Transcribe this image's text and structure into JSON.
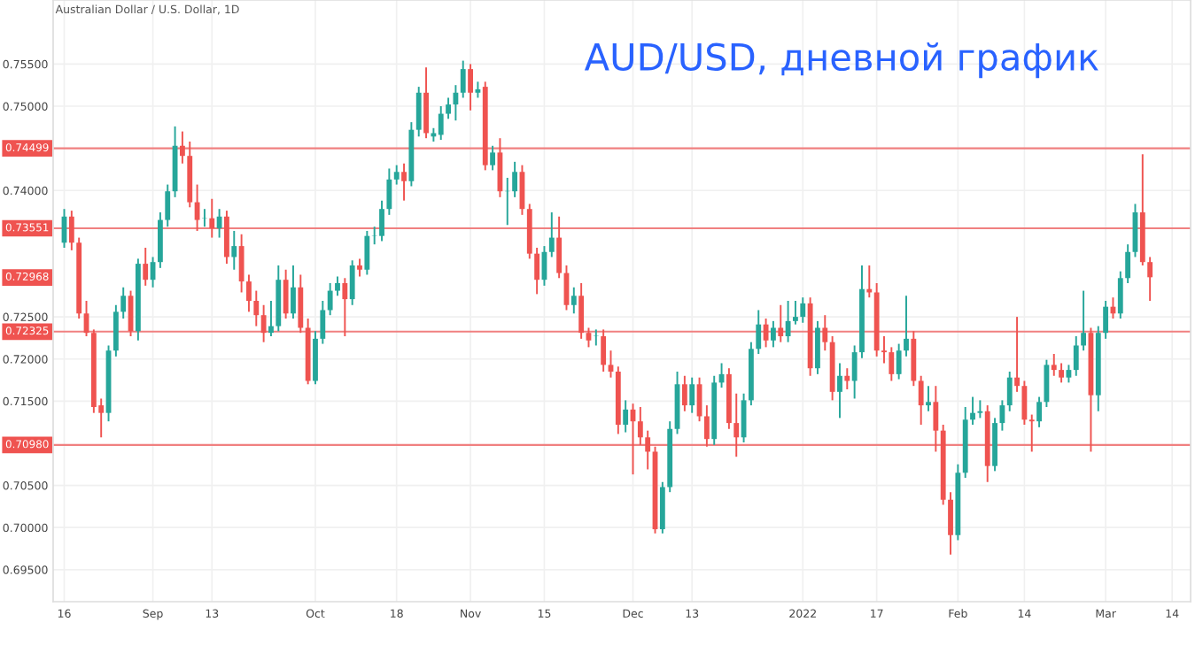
{
  "chart_data": {
    "type": "candlestick",
    "title": "AUD/USD, дневной график",
    "subtitle": "Australian Dollar / U.S. Dollar, 1D",
    "categories": [
      "16",
      null,
      null,
      null,
      null,
      null,
      null,
      null,
      null,
      null,
      null,
      null,
      "Sep",
      null,
      null,
      null,
      null,
      null,
      null,
      null,
      "13",
      null,
      null,
      null,
      null,
      null,
      null,
      null,
      null,
      null,
      null,
      null,
      null,
      null,
      "Oct",
      null,
      null,
      null,
      null,
      null,
      null,
      null,
      null,
      null,
      null,
      "18",
      null,
      null,
      null,
      null,
      null,
      null,
      null,
      null,
      null,
      "Nov",
      null,
      null,
      null,
      null,
      null,
      null,
      null,
      null,
      null,
      "15",
      null,
      null,
      null,
      null,
      null,
      null,
      null,
      null,
      null,
      null,
      null,
      "Dec",
      null,
      null,
      null,
      null,
      null,
      null,
      null,
      "13",
      null,
      null,
      null,
      null,
      null,
      null,
      null,
      null,
      null,
      null,
      null,
      null,
      null,
      null,
      "2022",
      null,
      null,
      null,
      null,
      null,
      null,
      null,
      null,
      null,
      "17",
      null,
      null,
      null,
      null,
      null,
      null,
      null,
      null,
      null,
      null,
      "Feb",
      null,
      null,
      null,
      null,
      null,
      null,
      null,
      null,
      "14",
      null,
      null,
      null,
      null,
      null,
      null,
      null,
      null,
      null,
      null,
      "Mar",
      null,
      null,
      null,
      null,
      null,
      null,
      null,
      null,
      "14"
    ],
    "ohlc": [
      [
        0.7338,
        0.7378,
        0.7332,
        0.7369
      ],
      [
        0.7369,
        0.7376,
        0.7329,
        0.7338
      ],
      [
        0.7338,
        0.7344,
        0.7248,
        0.7254
      ],
      [
        0.7254,
        0.7269,
        0.7227,
        0.7231
      ],
      [
        0.7231,
        0.7235,
        0.7136,
        0.7143
      ],
      [
        0.7145,
        0.7153,
        0.7107,
        0.7136
      ],
      [
        0.7136,
        0.7216,
        0.7126,
        0.721
      ],
      [
        0.721,
        0.7264,
        0.7203,
        0.7256
      ],
      [
        0.7256,
        0.7285,
        0.7248,
        0.7275
      ],
      [
        0.7275,
        0.7281,
        0.7227,
        0.7233
      ],
      [
        0.7233,
        0.7319,
        0.7222,
        0.7313
      ],
      [
        0.7313,
        0.7332,
        0.7287,
        0.7294
      ],
      [
        0.7294,
        0.7321,
        0.7285,
        0.7315
      ],
      [
        0.7315,
        0.7374,
        0.7308,
        0.7365
      ],
      [
        0.7365,
        0.7407,
        0.7357,
        0.7399
      ],
      [
        0.7399,
        0.7476,
        0.7392,
        0.7453
      ],
      [
        0.7453,
        0.747,
        0.7432,
        0.7441
      ],
      [
        0.7441,
        0.7458,
        0.738,
        0.7386
      ],
      [
        0.7386,
        0.7407,
        0.7352,
        0.7365
      ],
      [
        0.7367,
        0.7378,
        0.7357,
        0.7367
      ],
      [
        0.7367,
        0.739,
        0.7344,
        0.7355
      ],
      [
        0.7355,
        0.7378,
        0.7344,
        0.7369
      ],
      [
        0.7369,
        0.7376,
        0.7313,
        0.7321
      ],
      [
        0.7321,
        0.7352,
        0.7306,
        0.7334
      ],
      [
        0.7334,
        0.7348,
        0.7279,
        0.7292
      ],
      [
        0.7292,
        0.73,
        0.7256,
        0.7269
      ],
      [
        0.7269,
        0.7281,
        0.7239,
        0.7252
      ],
      [
        0.7252,
        0.7264,
        0.722,
        0.7231
      ],
      [
        0.7231,
        0.7269,
        0.7227,
        0.7239
      ],
      [
        0.7239,
        0.7311,
        0.7233,
        0.7294
      ],
      [
        0.7294,
        0.7306,
        0.7248,
        0.7254
      ],
      [
        0.7254,
        0.7311,
        0.7248,
        0.7285
      ],
      [
        0.7285,
        0.73,
        0.7231,
        0.7237
      ],
      [
        0.7237,
        0.7248,
        0.717,
        0.7174
      ],
      [
        0.7174,
        0.7233,
        0.717,
        0.7224
      ],
      [
        0.7224,
        0.7269,
        0.7218,
        0.7258
      ],
      [
        0.7258,
        0.729,
        0.7252,
        0.7281
      ],
      [
        0.7281,
        0.7298,
        0.7275,
        0.729
      ],
      [
        0.729,
        0.7296,
        0.7227,
        0.7271
      ],
      [
        0.7271,
        0.7317,
        0.7264,
        0.7311
      ],
      [
        0.7311,
        0.7319,
        0.7298,
        0.7306
      ],
      [
        0.7306,
        0.7352,
        0.73,
        0.7346
      ],
      [
        0.7346,
        0.7357,
        0.7336,
        0.7346
      ],
      [
        0.7346,
        0.7388,
        0.734,
        0.7378
      ],
      [
        0.7378,
        0.7426,
        0.7371,
        0.7413
      ],
      [
        0.7413,
        0.743,
        0.7407,
        0.7422
      ],
      [
        0.7422,
        0.7432,
        0.7388,
        0.7411
      ],
      [
        0.7411,
        0.7481,
        0.7405,
        0.7472
      ],
      [
        0.7472,
        0.7523,
        0.7464,
        0.7516
      ],
      [
        0.7516,
        0.7546,
        0.7462,
        0.7468
      ],
      [
        0.7464,
        0.7474,
        0.7458,
        0.7468
      ],
      [
        0.7466,
        0.75,
        0.746,
        0.7491
      ],
      [
        0.7491,
        0.751,
        0.7485,
        0.7502
      ],
      [
        0.7502,
        0.7525,
        0.7483,
        0.7516
      ],
      [
        0.7516,
        0.7554,
        0.751,
        0.7544
      ],
      [
        0.7544,
        0.755,
        0.7495,
        0.7516
      ],
      [
        0.7516,
        0.7529,
        0.751,
        0.752
      ],
      [
        0.7523,
        0.7529,
        0.7424,
        0.743
      ],
      [
        0.743,
        0.7453,
        0.7424,
        0.7445
      ],
      [
        0.7445,
        0.7462,
        0.7392,
        0.7399
      ],
      [
        0.7399,
        0.7415,
        0.7359,
        0.7399
      ],
      [
        0.7399,
        0.7434,
        0.7392,
        0.7422
      ],
      [
        0.7422,
        0.743,
        0.7371,
        0.7378
      ],
      [
        0.7378,
        0.7384,
        0.7319,
        0.7325
      ],
      [
        0.7325,
        0.7332,
        0.7277,
        0.7294
      ],
      [
        0.7294,
        0.7334,
        0.7287,
        0.7327
      ],
      [
        0.7327,
        0.7374,
        0.7321,
        0.7344
      ],
      [
        0.7344,
        0.7369,
        0.7296,
        0.7302
      ],
      [
        0.7302,
        0.7311,
        0.7258,
        0.7264
      ],
      [
        0.7264,
        0.7285,
        0.7254,
        0.7275
      ],
      [
        0.7275,
        0.729,
        0.7224,
        0.7231
      ],
      [
        0.7231,
        0.7237,
        0.7214,
        0.7222
      ],
      [
        0.7227,
        0.7235,
        0.7216,
        0.7227
      ],
      [
        0.7227,
        0.7235,
        0.7185,
        0.7193
      ],
      [
        0.7193,
        0.721,
        0.7178,
        0.7185
      ],
      [
        0.7185,
        0.7191,
        0.7111,
        0.7122
      ],
      [
        0.7122,
        0.7151,
        0.7113,
        0.714
      ],
      [
        0.714,
        0.7147,
        0.7063,
        0.7126
      ],
      [
        0.7126,
        0.7143,
        0.7098,
        0.7107
      ],
      [
        0.7107,
        0.7115,
        0.7069,
        0.709
      ],
      [
        0.709,
        0.7096,
        0.6993,
        0.6998
      ],
      [
        0.6998,
        0.7054,
        0.6993,
        0.7048
      ],
      [
        0.7048,
        0.7126,
        0.7042,
        0.7117
      ],
      [
        0.7117,
        0.7185,
        0.7111,
        0.717
      ],
      [
        0.717,
        0.718,
        0.7138,
        0.7145
      ],
      [
        0.7145,
        0.7178,
        0.7136,
        0.717
      ],
      [
        0.717,
        0.7178,
        0.7126,
        0.7132
      ],
      [
        0.7132,
        0.7145,
        0.7096,
        0.7105
      ],
      [
        0.7105,
        0.718,
        0.7098,
        0.7172
      ],
      [
        0.7172,
        0.7195,
        0.7166,
        0.7182
      ],
      [
        0.7182,
        0.7189,
        0.7117,
        0.7124
      ],
      [
        0.7124,
        0.7159,
        0.7084,
        0.7107
      ],
      [
        0.7107,
        0.7159,
        0.7101,
        0.7151
      ],
      [
        0.7151,
        0.722,
        0.7145,
        0.7212
      ],
      [
        0.7212,
        0.7258,
        0.7206,
        0.7241
      ],
      [
        0.7241,
        0.7248,
        0.7214,
        0.7222
      ],
      [
        0.7222,
        0.7245,
        0.7214,
        0.7237
      ],
      [
        0.7237,
        0.7264,
        0.722,
        0.7227
      ],
      [
        0.7227,
        0.7269,
        0.722,
        0.7245
      ],
      [
        0.7245,
        0.7269,
        0.7241,
        0.725
      ],
      [
        0.725,
        0.7273,
        0.7243,
        0.7266
      ],
      [
        0.7266,
        0.7273,
        0.718,
        0.7189
      ],
      [
        0.7189,
        0.7245,
        0.7182,
        0.7237
      ],
      [
        0.7237,
        0.7252,
        0.721,
        0.722
      ],
      [
        0.722,
        0.7227,
        0.7151,
        0.7161
      ],
      [
        0.7161,
        0.7195,
        0.713,
        0.718
      ],
      [
        0.718,
        0.7189,
        0.7164,
        0.7174
      ],
      [
        0.7174,
        0.7216,
        0.7153,
        0.7208
      ],
      [
        0.7208,
        0.7311,
        0.7201,
        0.7283
      ],
      [
        0.7283,
        0.7311,
        0.7273,
        0.7279
      ],
      [
        0.7279,
        0.729,
        0.7203,
        0.721
      ],
      [
        0.721,
        0.7227,
        0.7195,
        0.7208
      ],
      [
        0.7208,
        0.7214,
        0.7174,
        0.7182
      ],
      [
        0.7182,
        0.7218,
        0.7176,
        0.721
      ],
      [
        0.721,
        0.7275,
        0.7203,
        0.7224
      ],
      [
        0.7224,
        0.7233,
        0.7168,
        0.7174
      ],
      [
        0.7174,
        0.718,
        0.7122,
        0.7145
      ],
      [
        0.7145,
        0.7168,
        0.7138,
        0.7149
      ],
      [
        0.7149,
        0.7168,
        0.709,
        0.7115
      ],
      [
        0.7115,
        0.7122,
        0.7027,
        0.7033
      ],
      [
        0.7033,
        0.7042,
        0.6968,
        0.6991
      ],
      [
        0.6991,
        0.7075,
        0.6985,
        0.7065
      ],
      [
        0.7065,
        0.7143,
        0.7059,
        0.7128
      ],
      [
        0.7128,
        0.7155,
        0.7122,
        0.7136
      ],
      [
        0.7136,
        0.7151,
        0.713,
        0.7138
      ],
      [
        0.7138,
        0.7145,
        0.7054,
        0.7073
      ],
      [
        0.7073,
        0.713,
        0.7067,
        0.7124
      ],
      [
        0.7124,
        0.7151,
        0.7115,
        0.7145
      ],
      [
        0.7145,
        0.7185,
        0.7138,
        0.7178
      ],
      [
        0.7178,
        0.725,
        0.7161,
        0.7168
      ],
      [
        0.7168,
        0.7174,
        0.7122,
        0.7128
      ],
      [
        0.7128,
        0.7134,
        0.709,
        0.7126
      ],
      [
        0.7126,
        0.7155,
        0.7119,
        0.7149
      ],
      [
        0.7149,
        0.7199,
        0.7143,
        0.7193
      ],
      [
        0.7193,
        0.7206,
        0.718,
        0.7187
      ],
      [
        0.7187,
        0.7195,
        0.7172,
        0.7178
      ],
      [
        0.7178,
        0.7193,
        0.7172,
        0.7187
      ],
      [
        0.7187,
        0.7227,
        0.718,
        0.7216
      ],
      [
        0.7216,
        0.7281,
        0.721,
        0.7231
      ],
      [
        0.7231,
        0.7237,
        0.709,
        0.7157
      ],
      [
        0.7157,
        0.7239,
        0.7138,
        0.7231
      ],
      [
        0.7231,
        0.7269,
        0.7224,
        0.7262
      ],
      [
        0.7262,
        0.7273,
        0.7248,
        0.7254
      ],
      [
        0.7254,
        0.7304,
        0.7248,
        0.7296
      ],
      [
        0.7296,
        0.7336,
        0.729,
        0.7327
      ],
      [
        0.7327,
        0.7384,
        0.7321,
        0.7374
      ],
      [
        0.7374,
        0.7443,
        0.7311,
        0.7315
      ],
      [
        0.7315,
        0.7321,
        0.7269,
        0.7297
      ],
      null,
      null,
      null
    ],
    "colors": [
      "#26a69a",
      "#ef5350",
      "#ef5350",
      "#ef5350",
      "#ef5350",
      "#ef5350",
      "#26a69a",
      "#26a69a",
      "#26a69a",
      "#ef5350",
      "#26a69a",
      "#ef5350",
      "#26a69a",
      "#26a69a",
      "#26a69a",
      "#26a69a",
      "#ef5350",
      "#ef5350",
      "#ef5350",
      "#26a69a",
      "#ef5350",
      "#26a69a",
      "#ef5350",
      "#26a69a",
      "#ef5350",
      "#ef5350",
      "#ef5350",
      "#ef5350",
      "#26a69a",
      "#26a69a",
      "#ef5350",
      "#26a69a",
      "#ef5350",
      "#ef5350",
      "#26a69a",
      "#26a69a",
      "#26a69a",
      "#26a69a",
      "#ef5350",
      "#26a69a",
      "#ef5350",
      "#26a69a",
      "#26a69a",
      "#26a69a",
      "#26a69a",
      "#26a69a",
      "#ef5350",
      "#26a69a",
      "#26a69a",
      "#ef5350",
      "#26a69a",
      "#26a69a",
      "#26a69a",
      "#26a69a",
      "#26a69a",
      "#ef5350",
      "#26a69a",
      "#ef5350",
      "#26a69a",
      "#ef5350",
      "#26a69a",
      "#26a69a",
      "#ef5350",
      "#ef5350",
      "#ef5350",
      "#26a69a",
      "#26a69a",
      "#ef5350",
      "#ef5350",
      "#26a69a",
      "#ef5350",
      "#ef5350",
      "#26a69a",
      "#ef5350",
      "#ef5350",
      "#ef5350",
      "#26a69a",
      "#ef5350",
      "#ef5350",
      "#ef5350",
      "#ef5350",
      "#26a69a",
      "#26a69a",
      "#26a69a",
      "#ef5350",
      "#26a69a",
      "#ef5350",
      "#ef5350",
      "#26a69a",
      "#26a69a",
      "#ef5350",
      "#ef5350",
      "#26a69a",
      "#26a69a",
      "#26a69a",
      "#ef5350",
      "#26a69a",
      "#ef5350",
      "#26a69a",
      "#26a69a",
      "#26a69a",
      "#ef5350",
      "#26a69a",
      "#ef5350",
      "#ef5350",
      "#26a69a",
      "#ef5350",
      "#26a69a",
      "#26a69a",
      "#ef5350",
      "#ef5350",
      "#ef5350",
      "#ef5350",
      "#26a69a",
      "#26a69a",
      "#ef5350",
      "#ef5350",
      "#26a69a",
      "#ef5350",
      "#ef5350",
      "#ef5350",
      "#26a69a",
      "#26a69a",
      "#26a69a",
      "#26a69a",
      "#ef5350",
      "#26a69a",
      "#26a69a",
      "#26a69a",
      "#ef5350",
      "#ef5350",
      "#ef5350",
      "#26a69a",
      "#26a69a",
      "#ef5350",
      "#ef5350",
      "#26a69a",
      "#26a69a",
      "#26a69a",
      "#ef5350",
      "#26a69a",
      "#26a69a",
      "#ef5350",
      "#26a69a",
      "#26a69a",
      "#26a69a",
      "#ef5350",
      "#ef5350",
      null,
      null,
      null
    ],
    "ylim": [
      0.6912,
      0.7626
    ],
    "yticks": [
      {
        "value": 0.755,
        "label": "0.75500"
      },
      {
        "value": 0.75,
        "label": "0.75000"
      },
      {
        "value": 0.74,
        "label": "0.74000"
      },
      {
        "value": 0.725,
        "label": "0.72500"
      },
      {
        "value": 0.72,
        "label": "0.72000"
      },
      {
        "value": 0.715,
        "label": "0.71500"
      },
      {
        "value": 0.705,
        "label": "0.70500"
      },
      {
        "value": 0.7,
        "label": "0.70000"
      },
      {
        "value": 0.695,
        "label": "0.69500"
      }
    ],
    "ref_lines": [
      {
        "axis": "y",
        "value": 0.74499,
        "label": "0.74499",
        "color": "#f08080"
      },
      {
        "axis": "y",
        "value": 0.73551,
        "label": "0.73551",
        "color": "#f08080"
      },
      {
        "axis": "y",
        "value": 0.72325,
        "label": "0.72325",
        "color": "#f08080"
      },
      {
        "axis": "y",
        "value": 0.7098,
        "label": "0.70980",
        "color": "#f08080"
      }
    ],
    "annotations": [
      {
        "text": "0.72968",
        "y": 0.72968
      }
    ],
    "grid": true
  }
}
